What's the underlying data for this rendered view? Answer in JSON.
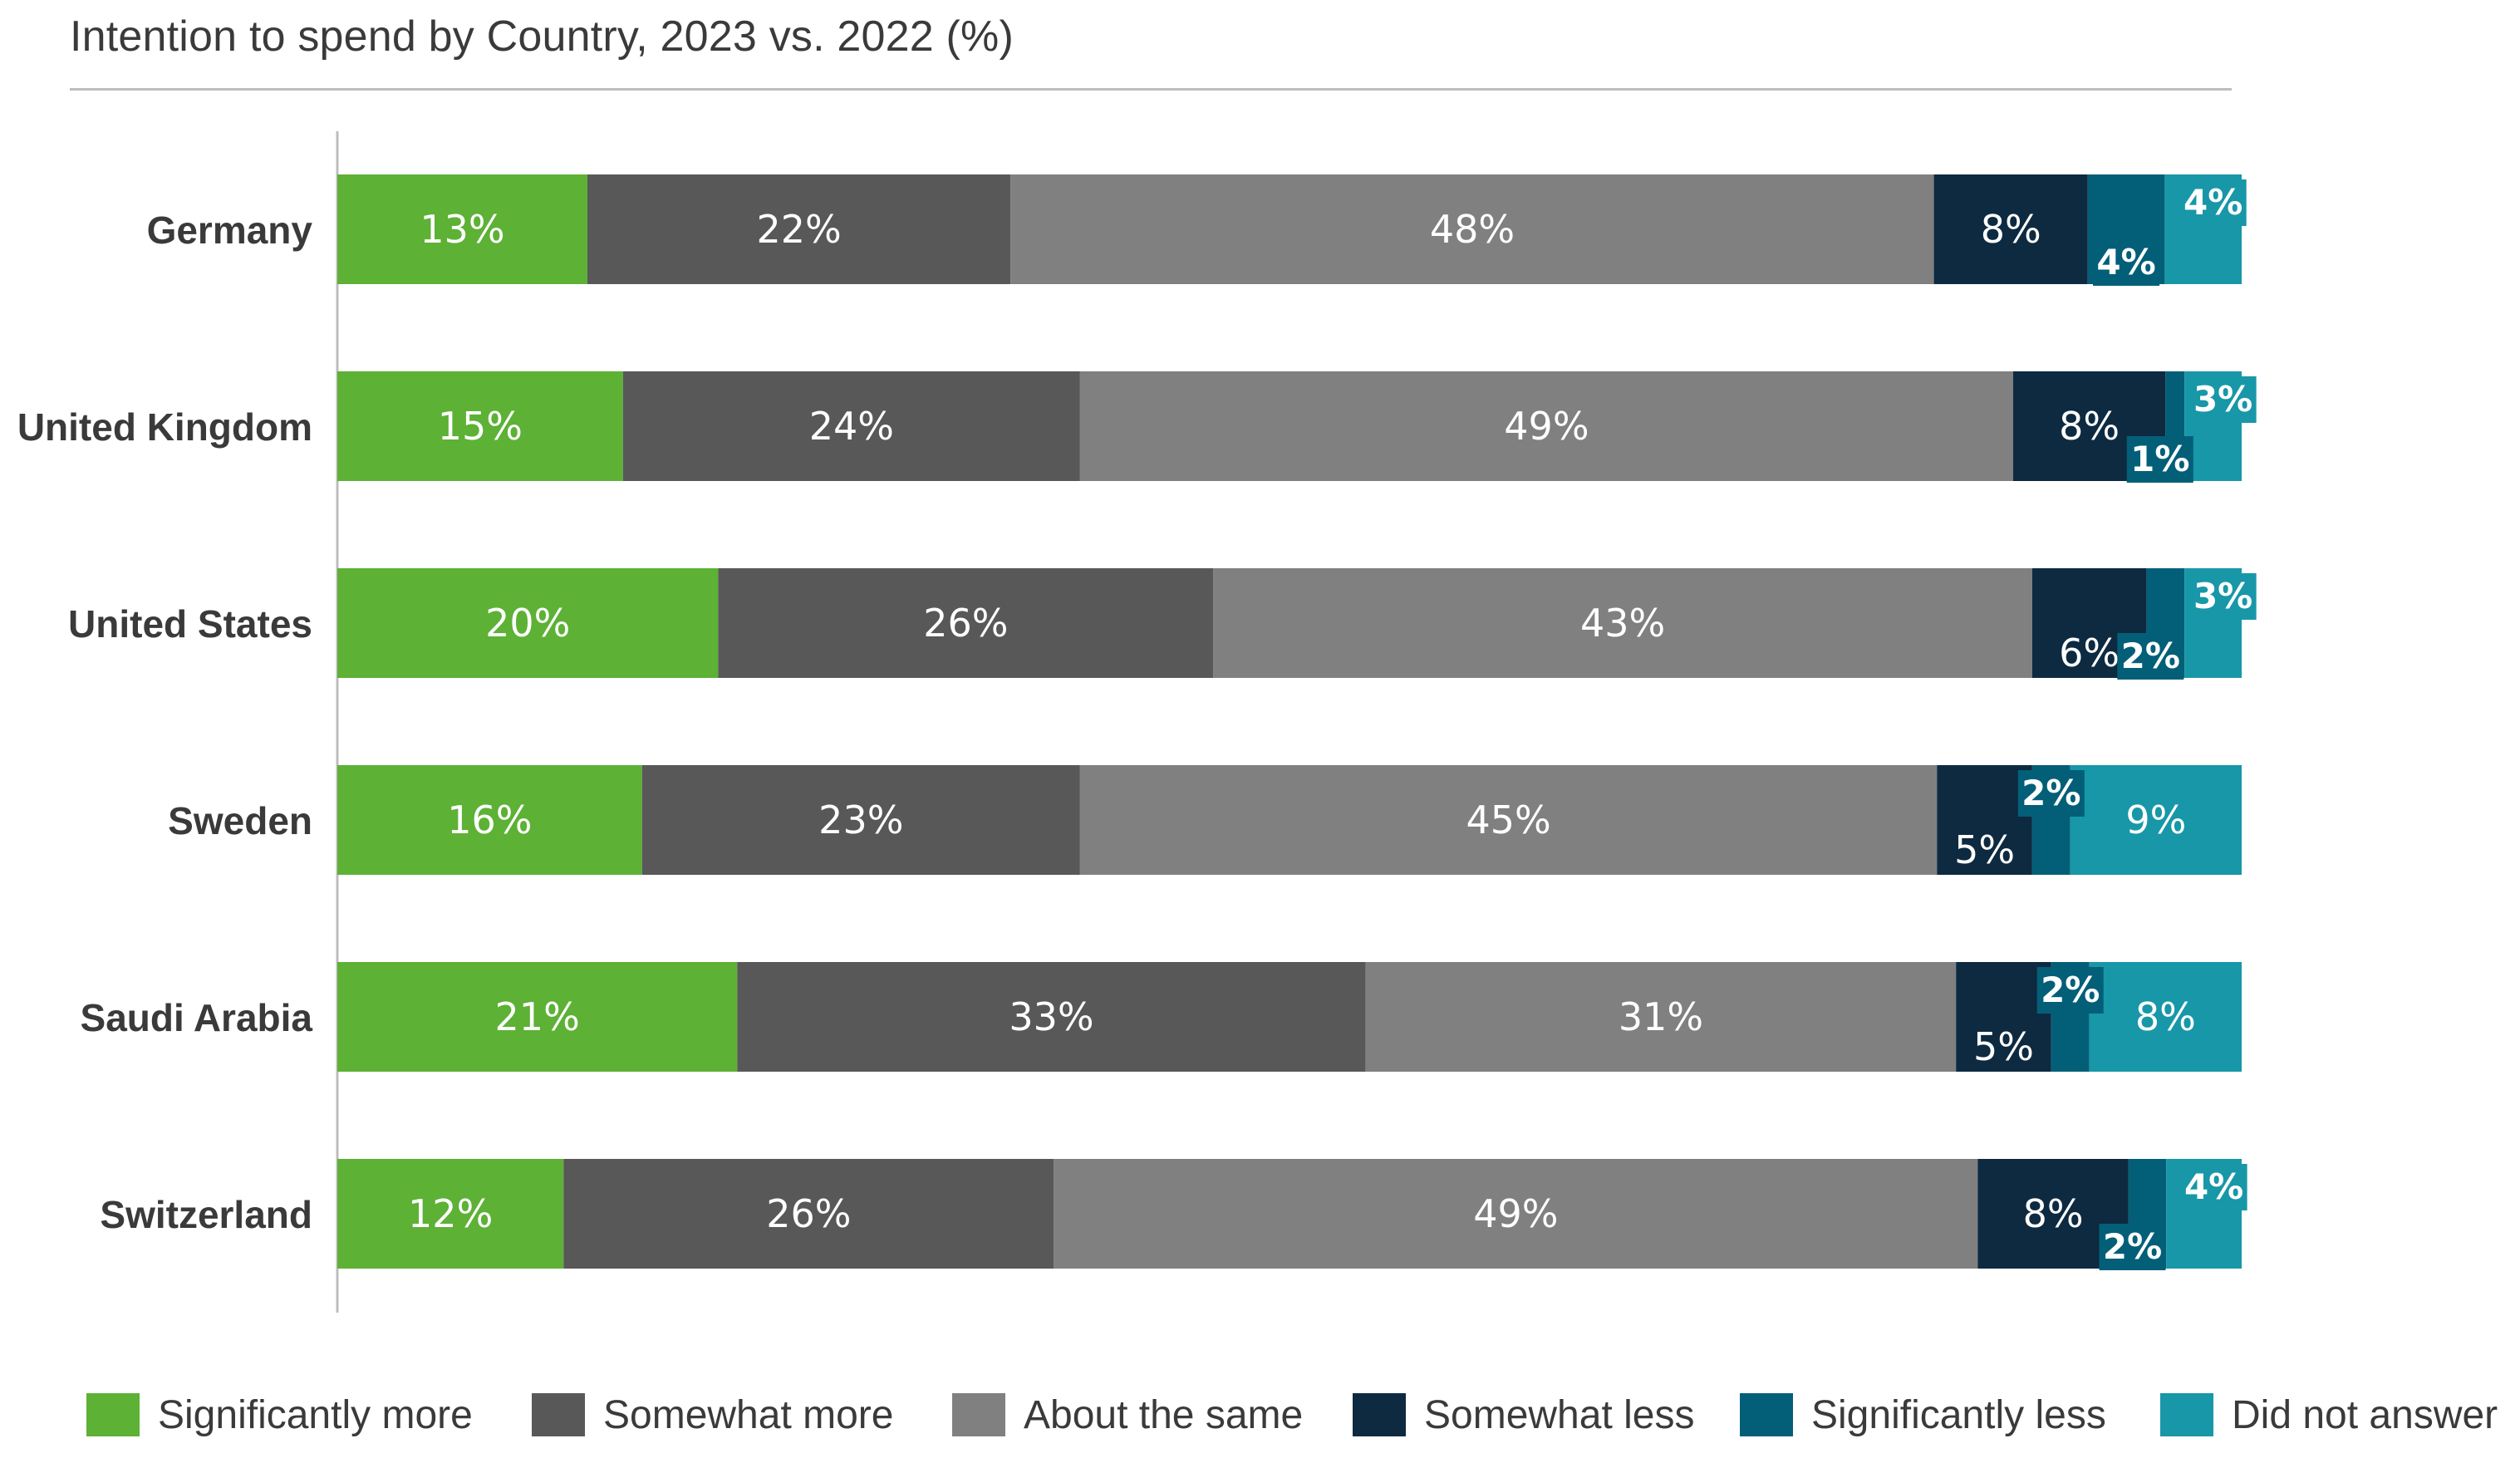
{
  "chart_data": {
    "type": "bar",
    "orientation": "horizontal",
    "stacked": true,
    "title": "Intention to spend by Country, 2023 vs. 2022 (%)",
    "categories": [
      "Germany",
      "United Kingdom",
      "United States",
      "Sweden",
      "Saudi Arabia",
      "Switzerland"
    ],
    "series": [
      {
        "name": "Significantly more",
        "color": "#5db135",
        "values": [
          13,
          15,
          20,
          16,
          21,
          12
        ]
      },
      {
        "name": "Somewhat more",
        "color": "#585858",
        "values": [
          22,
          24,
          26,
          23,
          33,
          26
        ]
      },
      {
        "name": "About the same",
        "color": "#808081",
        "values": [
          48,
          49,
          43,
          45,
          31,
          49
        ]
      },
      {
        "name": "Somewhat less",
        "color": "#0d2a40",
        "values": [
          8,
          8,
          6,
          5,
          5,
          8
        ]
      },
      {
        "name": "Significantly less",
        "color": "#035f78",
        "values": [
          4,
          1,
          2,
          2,
          2,
          2
        ]
      },
      {
        "name": "Did not answer",
        "color": "#1897a8",
        "values": [
          4,
          3,
          3,
          9,
          8,
          4
        ]
      }
    ],
    "data_label_format": "{v}%",
    "legend_position": "bottom",
    "grid": false
  }
}
